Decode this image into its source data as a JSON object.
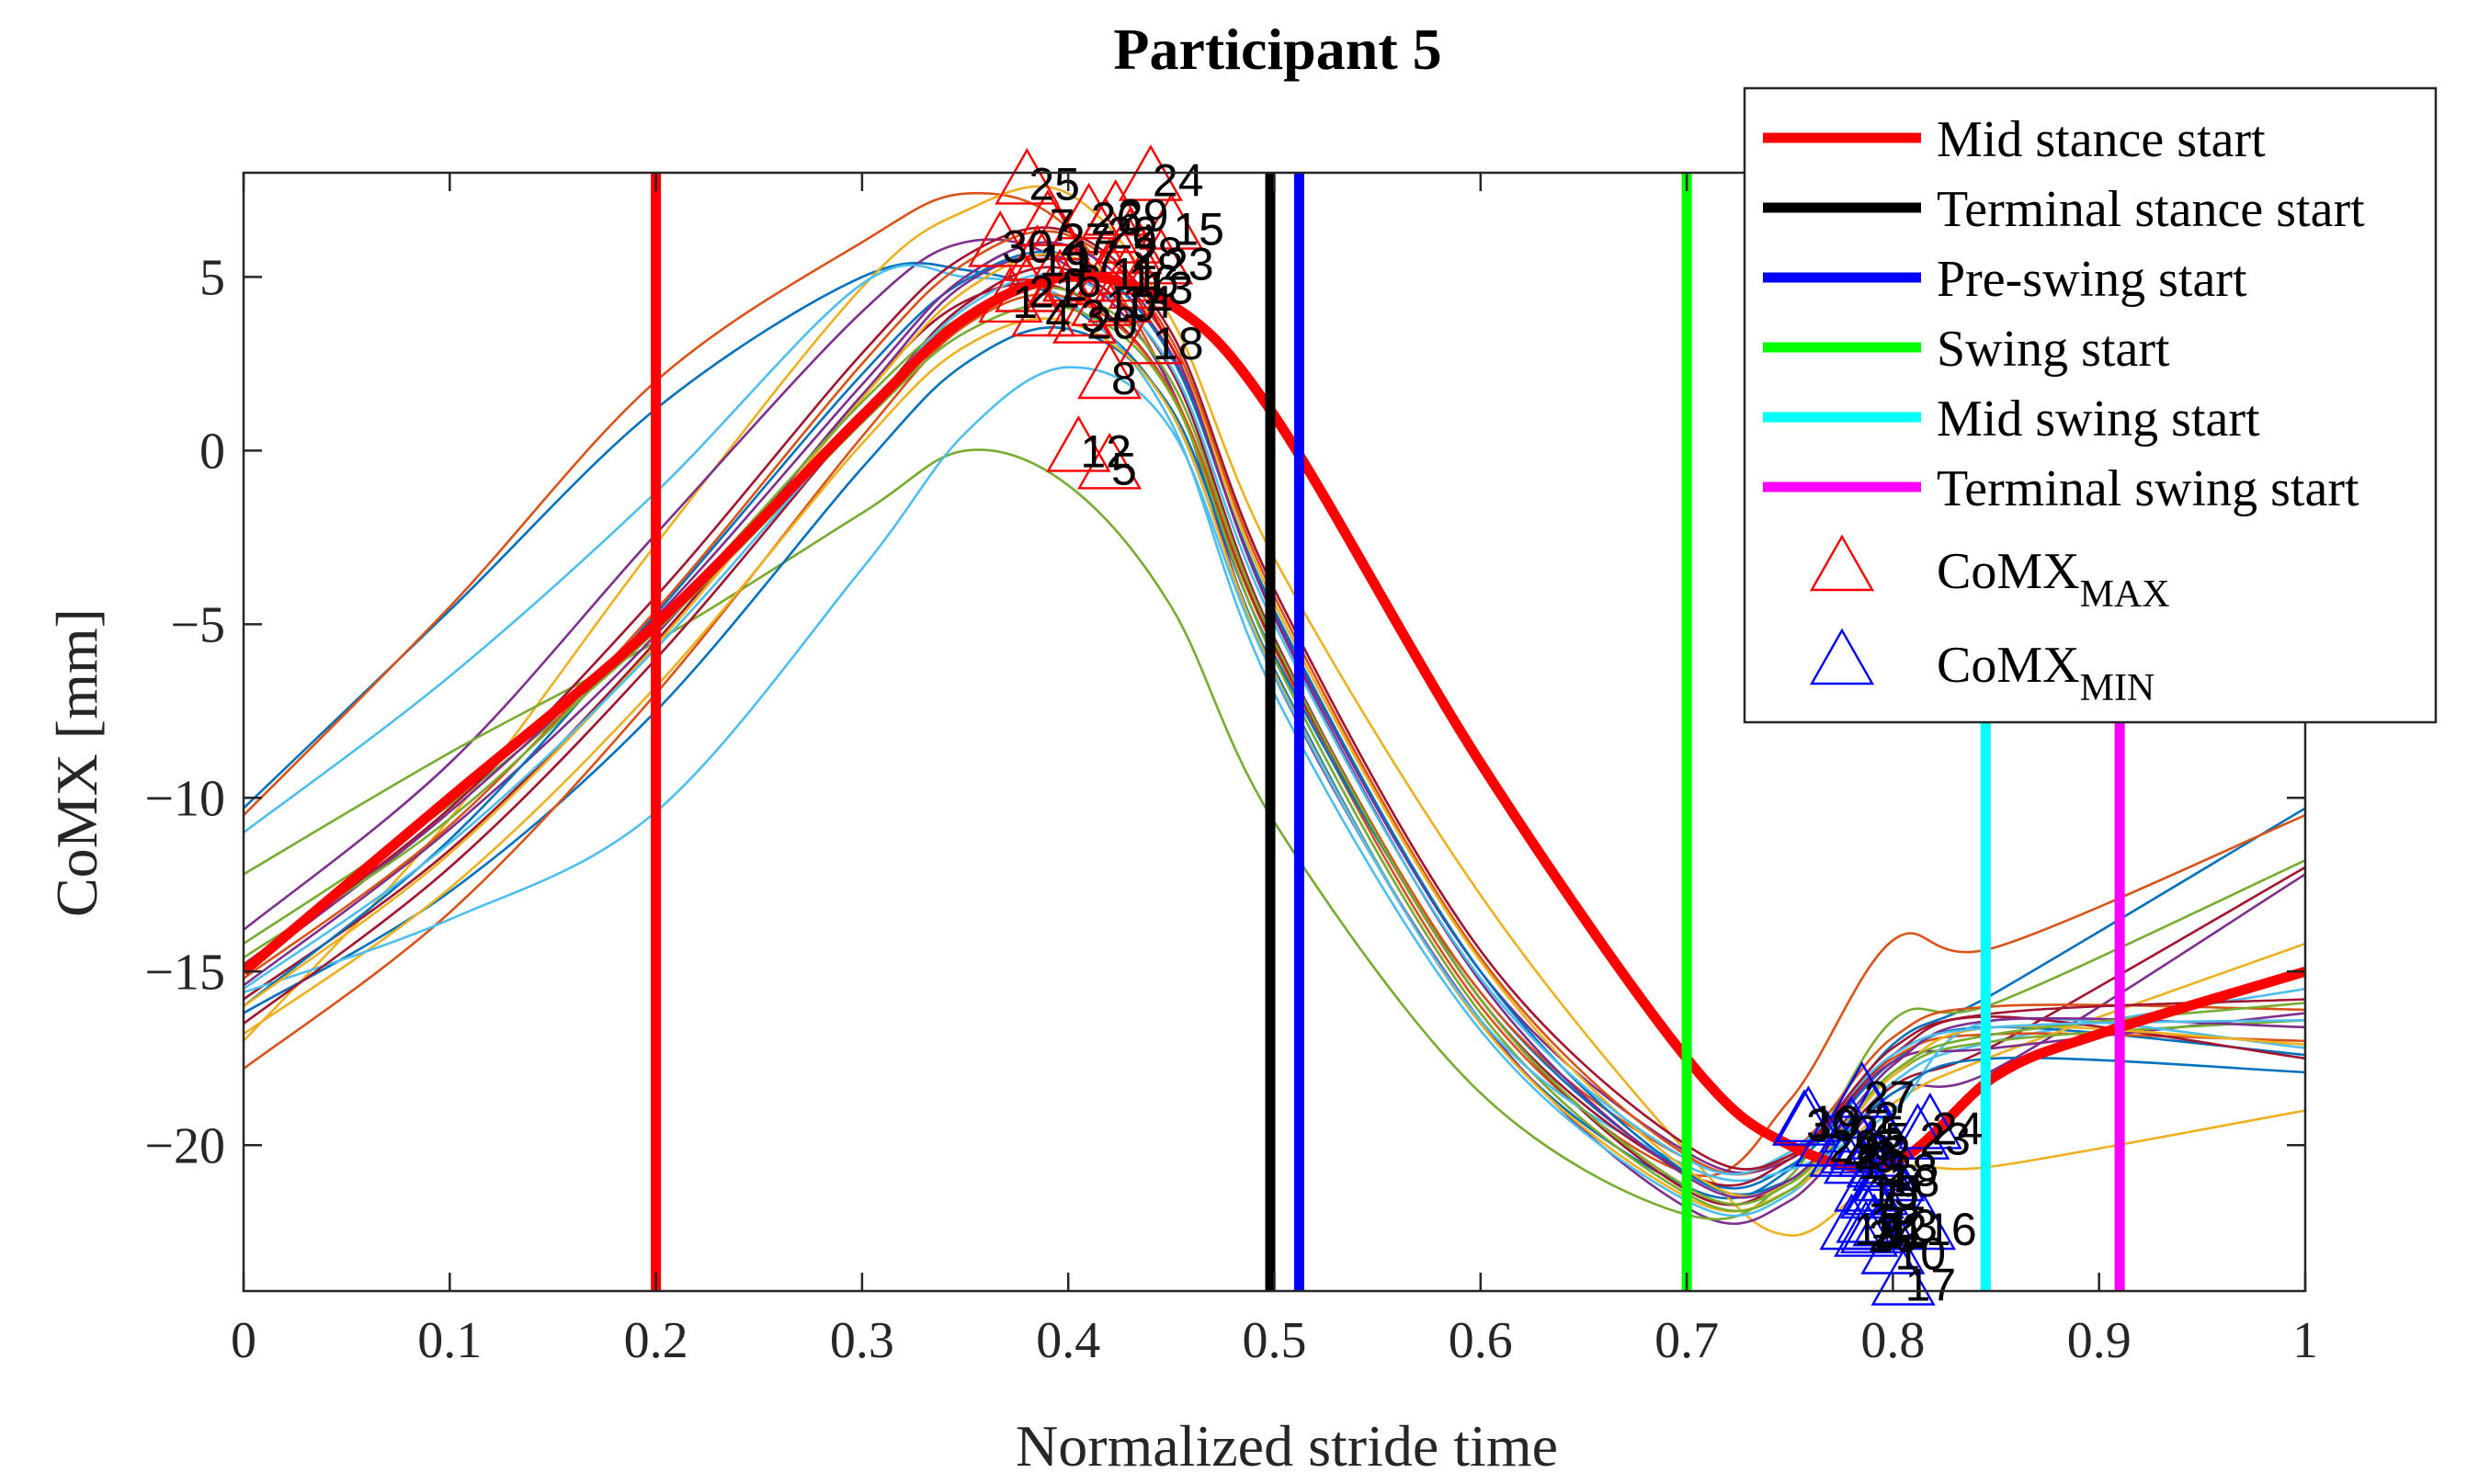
{
  "chart_data": {
    "type": "line",
    "title": "Participant 5",
    "xlabel": "Normalized stride time",
    "ylabel": "CoMX [mm]",
    "xlim": [
      0,
      1
    ],
    "ylim": [
      -24.2,
      8
    ],
    "xticks": [
      0,
      0.1,
      0.2,
      0.3,
      0.4,
      0.5,
      0.6,
      0.7,
      0.8,
      0.9,
      1
    ],
    "xtick_labels": [
      "0",
      "0.1",
      "0.2",
      "0.3",
      "0.4",
      "0.5",
      "0.6",
      "0.7",
      "0.8",
      "0.9",
      "1"
    ],
    "yticks": [
      -20,
      -15,
      -10,
      -5,
      0,
      5
    ],
    "ytick_labels": [
      "−20",
      "−15",
      "−10",
      "−5",
      "0",
      "5"
    ],
    "grid": false,
    "legend_position": "top-right",
    "legend": [
      {
        "label": "Mid stance start",
        "kind": "line",
        "color": "#ff0000"
      },
      {
        "label": "Terminal stance start",
        "kind": "line",
        "color": "#000000"
      },
      {
        "label": "Pre-swing start",
        "kind": "line",
        "color": "#0000ff"
      },
      {
        "label": "Swing start",
        "kind": "line",
        "color": "#00ff00"
      },
      {
        "label": "Mid swing start",
        "kind": "line",
        "color": "#00ffff"
      },
      {
        "label": "Terminal swing start",
        "kind": "line",
        "color": "#ff00ff"
      },
      {
        "label": "CoMX",
        "sub": "MAX",
        "kind": "marker",
        "color": "#ff0000"
      },
      {
        "label": "CoMX",
        "sub": "MIN",
        "kind": "marker",
        "color": "#0000ff"
      }
    ],
    "phase_lines": [
      {
        "name": "Mid stance start",
        "x": 0.2,
        "color": "#ff0000"
      },
      {
        "name": "Terminal stance start",
        "x": 0.498,
        "color": "#000000"
      },
      {
        "name": "Pre-swing start",
        "x": 0.512,
        "color": "#0000ff"
      },
      {
        "name": "Swing start",
        "x": 0.7,
        "color": "#00ff00"
      },
      {
        "name": "Mid swing start",
        "x": 0.845,
        "color": "#00ffff"
      },
      {
        "name": "Terminal swing start",
        "x": 0.91,
        "color": "#ff00ff"
      }
    ],
    "mean_series": {
      "color": "#ff0000",
      "x": [
        0,
        0.1,
        0.2,
        0.3,
        0.35,
        0.4,
        0.45,
        0.5,
        0.6,
        0.7,
        0.75,
        0.8,
        0.85,
        0.9,
        1
      ],
      "y": [
        -15,
        -10,
        -5,
        1,
        3.8,
        5,
        4.2,
        1,
        -9,
        -17.5,
        -20,
        -20.5,
        -18,
        -16.8,
        -15
      ]
    },
    "series_colors": [
      "#0072bd",
      "#d95319",
      "#edb120",
      "#7e2f8e",
      "#77ac30",
      "#4dbeee",
      "#a2142f"
    ],
    "series": [
      {
        "color": "#0072bd",
        "y": [
          -10.3,
          -4.6,
          1.2,
          5.0,
          5.2,
          4.2,
          1.1,
          -6.3,
          -16.5,
          -21.2,
          -20.7,
          -17.1,
          -15.6,
          -10.3
        ]
      },
      {
        "color": "#d95319",
        "y": [
          -10.5,
          -4.5,
          2.0,
          6.0,
          7.4,
          6.4,
          1.8,
          -5.7,
          -16.0,
          -20.8,
          -18.7,
          -14.1,
          -14.3,
          -10.5
        ]
      },
      {
        "color": "#edb120",
        "y": [
          -17.0,
          -10.6,
          -2.7,
          4.7,
          6.9,
          7.4,
          3.8,
          -3.1,
          -12.8,
          -20.2,
          -22.6,
          -20.7,
          -20.6,
          -19.0
        ]
      },
      {
        "color": "#7e2f8e",
        "y": [
          -13.8,
          -9.0,
          -2.4,
          4.0,
          6.0,
          5.3,
          1.8,
          -6.5,
          -16.4,
          -21.8,
          -21.6,
          -18.5,
          -17.8,
          -12.2
        ]
      },
      {
        "color": "#77ac30",
        "y": [
          -12.2,
          -8.7,
          -5.5,
          -1.8,
          0.0,
          -1.0,
          -4.5,
          -10.7,
          -18.5,
          -22.0,
          -20.9,
          -16.4,
          -15.9,
          -11.8
        ]
      },
      {
        "color": "#4dbeee",
        "y": [
          -11.0,
          -6.5,
          -1.2,
          4.8,
          5.0,
          4.3,
          0.8,
          -7.0,
          -16.7,
          -21.6,
          -21.4,
          -18.2,
          -17.0,
          -15.5
        ]
      },
      {
        "color": "#a2142f",
        "y": [
          -15.8,
          -11.5,
          -5.5,
          1.6,
          4.3,
          4.6,
          1.7,
          -5.6,
          -15.8,
          -21.3,
          -21.0,
          -18.3,
          -17.1,
          -12.0
        ]
      },
      {
        "color": "#0072bd",
        "y": [
          -16.2,
          -12.7,
          -7.5,
          -0.5,
          2.5,
          3.5,
          1.2,
          -5.9,
          -15.6,
          -20.8,
          -20.6,
          -17.6,
          -16.6,
          -17.4
        ]
      },
      {
        "color": "#d95319",
        "y": [
          -17.8,
          -13.3,
          -7.0,
          0.4,
          3.6,
          4.4,
          1.7,
          -5.5,
          -15.6,
          -20.4,
          -20.3,
          -17.5,
          -16.8,
          -17.0
        ]
      },
      {
        "color": "#edb120",
        "y": [
          -16.8,
          -12.6,
          -6.8,
          0.2,
          3.0,
          3.7,
          1.1,
          -6.4,
          -16.5,
          -21.5,
          -21.3,
          -18.8,
          -17.4,
          -14.2
        ]
      },
      {
        "color": "#7e2f8e",
        "y": [
          -15.4,
          -10.9,
          -5.3,
          1.6,
          4.8,
          5.5,
          2.8,
          -4.7,
          -15.0,
          -20.2,
          -20.4,
          -17.6,
          -17.2,
          -16.2
        ]
      },
      {
        "color": "#77ac30",
        "y": [
          -14.2,
          -10.2,
          -5.2,
          0.8,
          3.4,
          4.1,
          1.6,
          -6.0,
          -16.2,
          -21.4,
          -21.3,
          -18.0,
          -17.0,
          -16.4
        ]
      },
      {
        "color": "#4dbeee",
        "y": [
          -15.6,
          -13.5,
          -10.4,
          -3.4,
          0.5,
          2.4,
          0.6,
          -6.5,
          -16.4,
          -20.6,
          -20.7,
          -19.0,
          -16.4,
          -17.2
        ]
      },
      {
        "color": "#a2142f",
        "y": [
          -16.5,
          -12.0,
          -6.0,
          1.0,
          4.2,
          5.2,
          2.3,
          -5.4,
          -15.8,
          -20.8,
          -20.4,
          -17.4,
          -16.3,
          -17.5
        ]
      },
      {
        "color": "#0072bd",
        "y": [
          -16.0,
          -11.2,
          -4.7,
          2.2,
          4.9,
          5.6,
          2.7,
          -4.6,
          -15.0,
          -20.8,
          -21.0,
          -18.5,
          -17.5,
          -17.9
        ]
      },
      {
        "color": "#d95319",
        "y": [
          -15.2,
          -10.8,
          -4.6,
          2.5,
          5.4,
          6.2,
          3.2,
          -4.2,
          -14.6,
          -20.3,
          -20.2,
          -16.9,
          -16.0,
          -16.1
        ]
      },
      {
        "color": "#edb120",
        "y": [
          -16.0,
          -11.6,
          -5.6,
          1.5,
          4.6,
          5.6,
          3.0,
          -4.4,
          -14.7,
          -20.7,
          -21.1,
          -18.0,
          -16.6,
          -17.1
        ]
      },
      {
        "color": "#7e2f8e",
        "y": [
          -15.0,
          -10.4,
          -4.8,
          1.9,
          5.0,
          5.9,
          3.0,
          -4.8,
          -15.3,
          -20.9,
          -21.0,
          -17.7,
          -16.4,
          -16.6
        ]
      },
      {
        "color": "#77ac30",
        "y": [
          -14.6,
          -10.6,
          -5.0,
          1.4,
          3.9,
          4.6,
          2.0,
          -5.5,
          -15.8,
          -21.2,
          -21.1,
          -17.9,
          -16.8,
          -15.9
        ]
      },
      {
        "color": "#4dbeee",
        "y": [
          -15.5,
          -11.3,
          -5.7,
          1.0,
          4.1,
          5.0,
          2.4,
          -5.0,
          -15.2,
          -20.4,
          -20.2,
          -17.4,
          -16.6,
          -16.4
        ]
      },
      {
        "color": "#a2142f",
        "y": [
          -14.8,
          -10.3,
          -4.2,
          2.8,
          5.6,
          6.3,
          3.4,
          -4.0,
          -14.4,
          -20.0,
          -20.3,
          -17.2,
          -16.2,
          -15.8
        ]
      }
    ],
    "max_markers": [
      {
        "label": "1",
        "x": 0.372,
        "y": 4.3
      },
      {
        "label": "2",
        "x": 0.396,
        "y": 4.8
      },
      {
        "label": "3",
        "x": 0.405,
        "y": 3.9
      },
      {
        "label": "4",
        "x": 0.388,
        "y": 3.9
      },
      {
        "label": "5",
        "x": 0.42,
        "y": -0.5
      },
      {
        "label": "6",
        "x": 0.403,
        "y": 4.9
      },
      {
        "label": "7",
        "x": 0.39,
        "y": 6.5
      },
      {
        "label": "8",
        "x": 0.42,
        "y": 2.1
      },
      {
        "label": "9",
        "x": 0.43,
        "y": 6.0
      },
      {
        "label": "10",
        "x": 0.417,
        "y": 4.2
      },
      {
        "label": "11",
        "x": 0.42,
        "y": 5.1
      },
      {
        "label": "12",
        "x": 0.405,
        "y": 0.0
      },
      {
        "label": "13",
        "x": 0.435,
        "y": 4.7
      },
      {
        "label": "14",
        "x": 0.425,
        "y": 4.3
      },
      {
        "label": "15",
        "x": 0.45,
        "y": 6.4
      },
      {
        "label": "16",
        "x": 0.428,
        "y": 4.9
      },
      {
        "label": "17",
        "x": 0.399,
        "y": 5.6
      },
      {
        "label": "18",
        "x": 0.44,
        "y": 3.1
      },
      {
        "label": "19",
        "x": 0.385,
        "y": 5.5
      },
      {
        "label": "20",
        "x": 0.408,
        "y": 3.7
      },
      {
        "label": "21",
        "x": 0.38,
        "y": 4.6
      },
      {
        "label": "22",
        "x": 0.418,
        "y": 6.3
      },
      {
        "label": "23",
        "x": 0.445,
        "y": 5.4
      },
      {
        "label": "24",
        "x": 0.44,
        "y": 7.8
      },
      {
        "label": "25",
        "x": 0.38,
        "y": 7.7
      },
      {
        "label": "26",
        "x": 0.41,
        "y": 6.7
      },
      {
        "label": "27",
        "x": 0.395,
        "y": 6.1
      },
      {
        "label": "28",
        "x": 0.43,
        "y": 5.7
      },
      {
        "label": "29",
        "x": 0.423,
        "y": 6.8
      },
      {
        "label": "30",
        "x": 0.367,
        "y": 5.9
      }
    ],
    "min_markers": [
      {
        "label": "1",
        "x": 0.782,
        "y": -20.5
      },
      {
        "label": "2",
        "x": 0.79,
        "y": -19.2
      },
      {
        "label": "3",
        "x": 0.793,
        "y": -20.6
      },
      {
        "label": "4",
        "x": 0.775,
        "y": -20.3
      },
      {
        "label": "5",
        "x": 0.795,
        "y": -19.8
      },
      {
        "label": "6",
        "x": 0.8,
        "y": -21.0
      },
      {
        "label": "7",
        "x": 0.79,
        "y": -21.5
      },
      {
        "label": "8",
        "x": 0.785,
        "y": -20.1
      },
      {
        "label": "9",
        "x": 0.789,
        "y": -20.3
      },
      {
        "label": "10",
        "x": 0.8,
        "y": -23.1
      },
      {
        "label": "11",
        "x": 0.792,
        "y": -21.4
      },
      {
        "label": "12",
        "x": 0.788,
        "y": -22.2
      },
      {
        "label": "13",
        "x": 0.796,
        "y": -22.3
      },
      {
        "label": "14",
        "x": 0.78,
        "y": -22.4
      },
      {
        "label": "15",
        "x": 0.787,
        "y": -21.3
      },
      {
        "label": "16",
        "x": 0.815,
        "y": -22.4
      },
      {
        "label": "17",
        "x": 0.805,
        "y": -24.0
      },
      {
        "label": "18",
        "x": 0.797,
        "y": -21.0
      },
      {
        "label": "19",
        "x": 0.759,
        "y": -19.3
      },
      {
        "label": "20",
        "x": 0.787,
        "y": -22.6
      },
      {
        "label": "21",
        "x": 0.79,
        "y": -22.5
      },
      {
        "label": "22",
        "x": 0.791,
        "y": -22.4
      },
      {
        "label": "23",
        "x": 0.812,
        "y": -19.8
      },
      {
        "label": "24",
        "x": 0.818,
        "y": -19.5
      },
      {
        "label": "25",
        "x": 0.78,
        "y": -19.6
      },
      {
        "label": "26",
        "x": 0.78,
        "y": -20.2
      },
      {
        "label": "27",
        "x": 0.785,
        "y": -18.6
      },
      {
        "label": "28",
        "x": 0.796,
        "y": -20.7
      },
      {
        "label": "29",
        "x": 0.768,
        "y": -20.0
      },
      {
        "label": "30",
        "x": 0.757,
        "y": -19.4
      }
    ]
  }
}
